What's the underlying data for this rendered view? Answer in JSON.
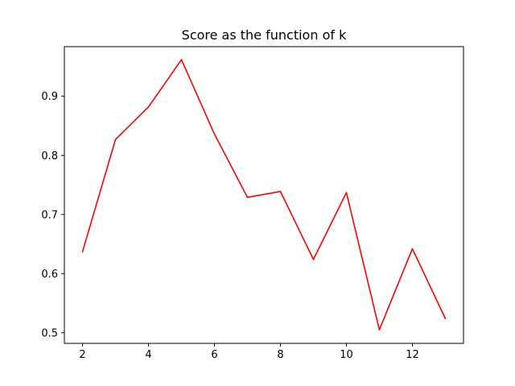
{
  "chart_data": {
    "type": "line",
    "title": "Score as the function of k",
    "xlabel": "",
    "ylabel": "",
    "xlim": [
      1.45,
      13.55
    ],
    "ylim": [
      0.482,
      0.984
    ],
    "xticks": [
      2,
      4,
      6,
      8,
      10,
      12
    ],
    "yticks": [
      0.5,
      0.6,
      0.7,
      0.8,
      0.9
    ],
    "grid": false,
    "series": [
      {
        "color": "#ff0000",
        "x": [
          2,
          3,
          4,
          5,
          6,
          7,
          8,
          9,
          10,
          11,
          12,
          13
        ],
        "y": [
          0.637,
          0.827,
          0.882,
          0.962,
          0.836,
          0.729,
          0.739,
          0.624,
          0.737,
          0.505,
          0.642,
          0.524
        ]
      }
    ]
  }
}
